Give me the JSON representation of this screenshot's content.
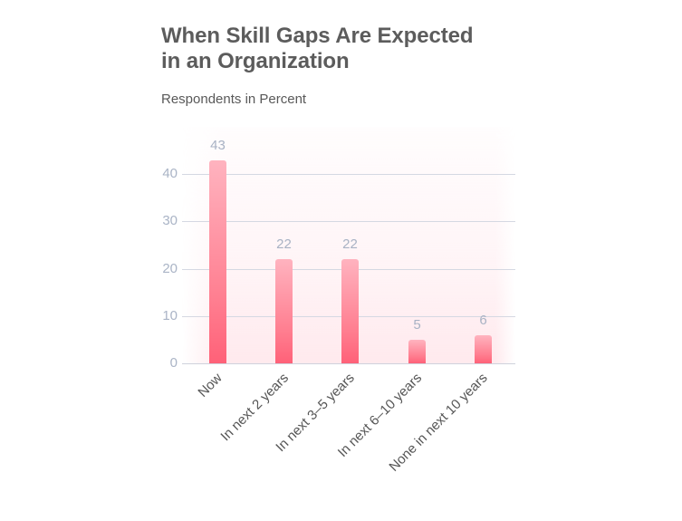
{
  "chart_data": {
    "type": "bar",
    "title": "When Skill Gaps Are Expected in an Organization",
    "title_lines": [
      "When Skill Gaps Are Expected",
      "in an Organization"
    ],
    "subtitle": "Respondents in Percent",
    "xlabel": "",
    "ylabel": "",
    "categories": [
      "Now",
      "In next 2 years",
      "In next 3–5 years",
      "In next 6–10 years",
      "None in next 10 years"
    ],
    "values": [
      43,
      22,
      22,
      5,
      6
    ],
    "value_labels": [
      "43",
      "22",
      "22",
      "5",
      "6"
    ],
    "yticks": [
      "0",
      "10",
      "20",
      "30",
      "40"
    ],
    "ylim": [
      0,
      50
    ],
    "grid": true,
    "legend": null,
    "colors": {
      "bar_top": "#ffb3bf",
      "bar_bottom": "#ff6178",
      "title": "#5c5c5c",
      "tick_label": "#aab4c6",
      "value_label": "#a8b2c4",
      "gridline": "#d5d8e2"
    }
  }
}
